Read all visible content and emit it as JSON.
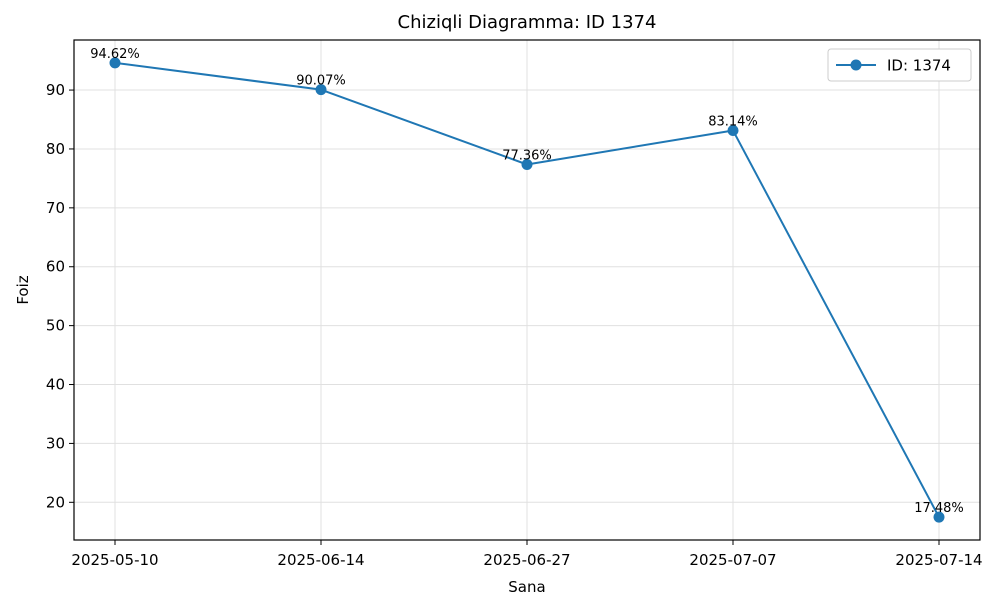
{
  "chart_data": {
    "type": "line",
    "title": "Chiziqli Diagramma: ID 1374",
    "xlabel": "Sana",
    "ylabel": "Foiz",
    "categories": [
      "2025-05-10",
      "2025-06-14",
      "2025-06-27",
      "2025-07-07",
      "2025-07-14"
    ],
    "series": [
      {
        "name": "ID: 1374",
        "values": [
          94.62,
          90.07,
          77.36,
          83.14,
          17.48
        ],
        "labels": [
          "94.62%",
          "90.07%",
          "77.36%",
          "83.14%",
          "17.48%"
        ],
        "color": "#1f77b4",
        "marker": "circle"
      }
    ],
    "ylim": [
      13.6,
      98.5
    ],
    "yticks": [
      20,
      30,
      40,
      50,
      60,
      70,
      80,
      90
    ],
    "grid": true,
    "legend": "top-right"
  }
}
